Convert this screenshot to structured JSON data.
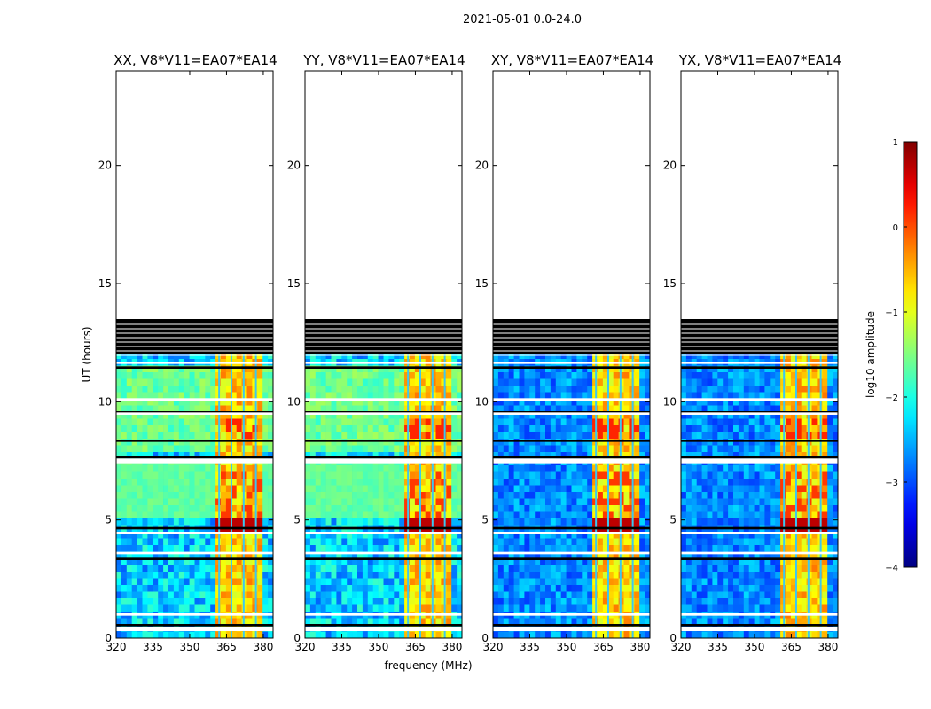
{
  "figure": {
    "suptitle": "2021-05-01 0.0-24.0",
    "xlabel": "frequency (MHz)",
    "ylabel": "UT (hours)"
  },
  "chart_data": {
    "type": "heatmap",
    "panels": [
      {
        "title": "XX, V8*V11=EA07*EA14",
        "pol": "XX"
      },
      {
        "title": "YY, V8*V11=EA07*EA14",
        "pol": "YY"
      },
      {
        "title": "XY, V8*V11=EA07*EA14",
        "pol": "XY"
      },
      {
        "title": "YX, V8*V11=EA07*EA14",
        "pol": "YX"
      }
    ],
    "x": {
      "range": [
        320,
        384
      ],
      "ticks": [
        320,
        335,
        350,
        365,
        380
      ],
      "tick_labels": [
        "320",
        "335",
        "350",
        "365",
        "380"
      ]
    },
    "y": {
      "range": [
        0,
        24
      ],
      "ticks": [
        0,
        5,
        10,
        15,
        20
      ],
      "tick_labels": [
        "0",
        "5",
        "10",
        "15",
        "20"
      ]
    },
    "data_extent_hours": [
      0,
      13.5
    ],
    "blank_rows_hours": [
      [
        0.3,
        0.45
      ],
      [
        0.95,
        1.05
      ],
      [
        3.55,
        3.65
      ],
      [
        4.4,
        4.5
      ],
      [
        7.4,
        7.6
      ],
      [
        9.45,
        9.55
      ],
      [
        10.05,
        10.15
      ],
      [
        11.6,
        11.7
      ]
    ],
    "flagged_rows_hours": [
      [
        12.0,
        13.5
      ],
      [
        7.6,
        7.7
      ],
      [
        9.5,
        9.6
      ],
      [
        11.4,
        11.5
      ],
      [
        3.3,
        3.4
      ],
      [
        4.6,
        4.7
      ],
      [
        0.5,
        0.6
      ],
      [
        8.3,
        8.4
      ]
    ],
    "rfi_band_mhz": [
      360,
      380
    ],
    "colorbar": {
      "label": "log10 amplitude",
      "min": -4,
      "max": 1,
      "ticks": [
        1,
        0,
        -1,
        -2,
        -3,
        -4
      ],
      "tick_labels": [
        "1",
        "0",
        "−1",
        "−2",
        "−3",
        "−4"
      ],
      "colormap": "jet"
    }
  }
}
